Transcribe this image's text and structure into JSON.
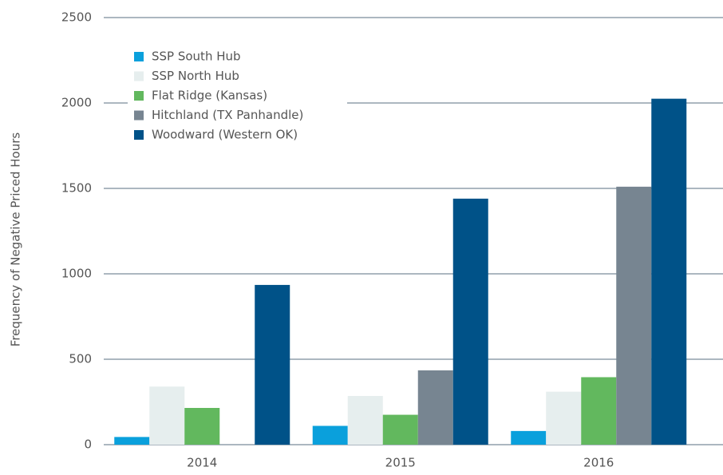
{
  "chart_data": {
    "type": "bar",
    "y_axis_label": "Frequency of Negative Priced Hours",
    "categories": [
      "2014",
      "2015",
      "2016"
    ],
    "series": [
      {
        "name": "SSP South Hub",
        "color": "#0aa0dc",
        "values": [
          45,
          110,
          80
        ]
      },
      {
        "name": "SSP North Hub",
        "color": "#e6eeee",
        "values": [
          340,
          285,
          310
        ]
      },
      {
        "name": "Flat Ridge (Kansas)",
        "color": "#62b85e",
        "values": [
          215,
          175,
          395
        ]
      },
      {
        "name": "Hitchland (TX Panhandle)",
        "color": "#778591",
        "values": [
          null,
          435,
          1510
        ]
      },
      {
        "name": "Woodward (Western OK)",
        "color": "#005288",
        "values": [
          935,
          1440,
          2025
        ]
      }
    ],
    "ylim": [
      0,
      2500
    ],
    "yticks": [
      0,
      500,
      1000,
      1500,
      2000,
      2500
    ],
    "grid": true,
    "legend": "upper left"
  }
}
